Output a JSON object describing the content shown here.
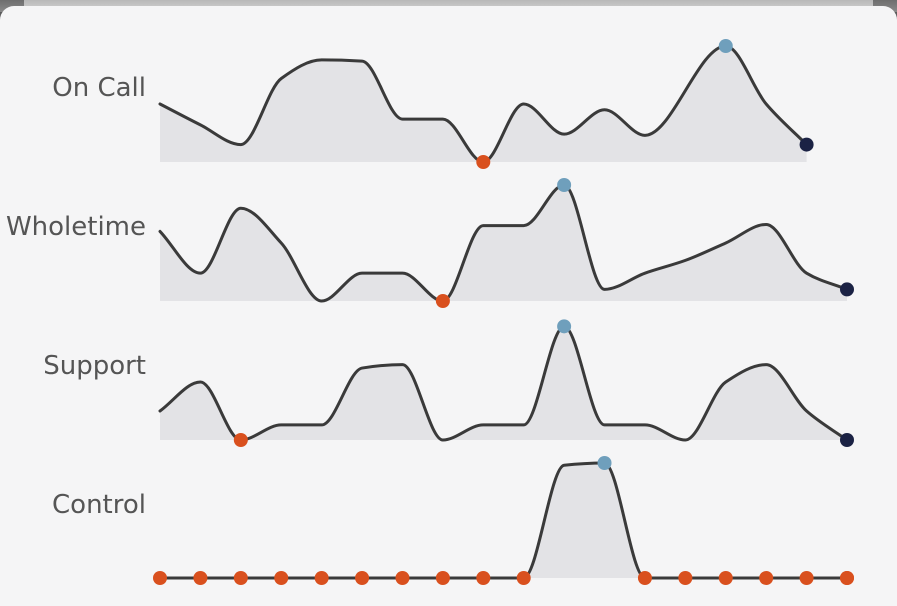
{
  "chart_data": {
    "type": "area",
    "chart_kind": "sparkline-small-multiples",
    "x": [
      1,
      2,
      3,
      4,
      5,
      6,
      7,
      8,
      9,
      10,
      11,
      12,
      13,
      14,
      15,
      16,
      17,
      18
    ],
    "ylim": [
      0,
      1
    ],
    "grid": false,
    "legend": "none",
    "series": [
      {
        "name": "On Call",
        "values": [
          0.5,
          0.32,
          0.15,
          0.72,
          0.88,
          0.87,
          0.37,
          0.37,
          0.0,
          0.5,
          0.24,
          0.45,
          0.23,
          1.0,
          0.5,
          0.15
        ],
        "x": [
          1,
          2,
          3,
          4,
          5,
          6,
          7,
          8,
          9,
          10,
          11,
          12,
          13,
          15,
          16,
          17
        ],
        "min_index": 8,
        "max_index": 13,
        "last_index": 15
      },
      {
        "name": "Wholetime",
        "values": [
          0.6,
          0.24,
          0.8,
          0.5,
          0.0,
          0.24,
          0.24,
          0.0,
          0.65,
          0.65,
          1.0,
          0.1,
          0.24,
          0.35,
          0.5,
          0.66,
          0.24,
          0.1
        ],
        "min_index": 7,
        "max_index": 10,
        "last_index": 17
      },
      {
        "name": "Support",
        "values": [
          0.25,
          0.5,
          0.0,
          0.13,
          0.13,
          0.62,
          0.65,
          0.0,
          0.13,
          0.13,
          0.98,
          0.13,
          0.13,
          0.0,
          0.5,
          0.65,
          0.25,
          0.0
        ],
        "min_index": 2,
        "max_index": 10,
        "last_index": 17
      },
      {
        "name": "Control",
        "values": [
          0,
          0,
          0,
          0,
          0,
          0,
          0,
          0,
          0,
          0,
          0.98,
          1.0,
          0,
          0,
          0,
          0,
          0,
          0
        ],
        "min_indices": [
          0,
          1,
          2,
          3,
          4,
          5,
          6,
          7,
          8,
          9,
          12,
          13,
          14,
          15,
          16,
          17
        ],
        "max_index": 11,
        "last_index": 17
      }
    ]
  },
  "colors": {
    "line": "#3a3a3a",
    "area": "#e3e3e6",
    "min_marker": "#d9501e",
    "max_marker": "#6f9fbc",
    "last_marker": "#1b2244",
    "label": "#555555"
  }
}
